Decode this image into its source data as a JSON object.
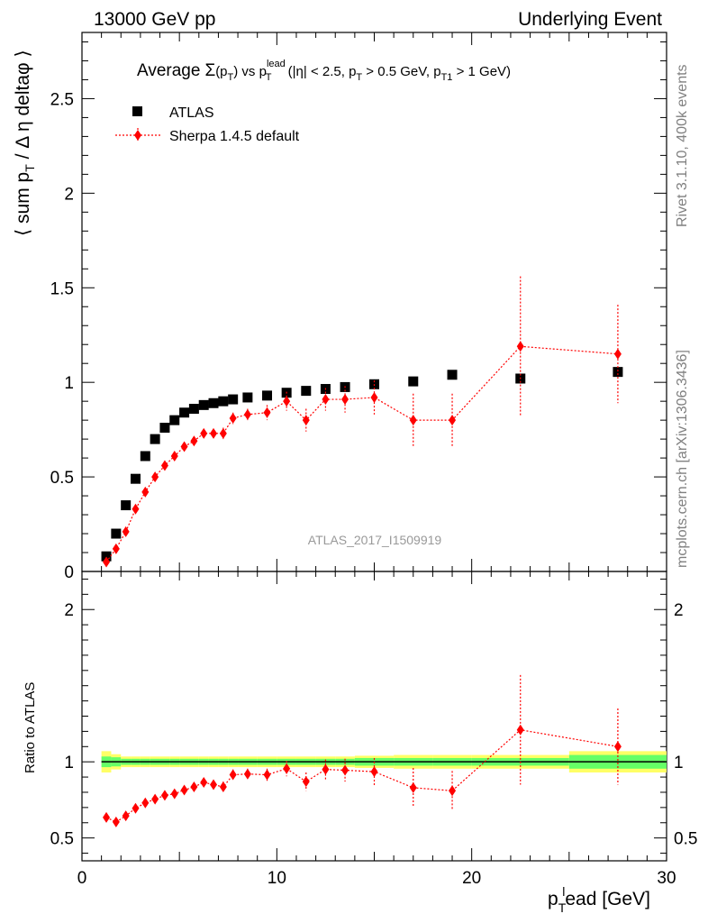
{
  "header": {
    "left": "13000 GeV pp",
    "right": "Underlying Event"
  },
  "title": {
    "lead": "Average",
    "sigma": "Σ",
    "p_open": "(p",
    "sub_T1": "T",
    "p_close": ")",
    "vs": " vs p",
    "sup_lead": "lead",
    "sub_T2": "T",
    "cut1": " (|η| < 2.5, p",
    "sub_T3": "T",
    "cut2": " > 0.5 GeV, p",
    "sub_T4": "T1",
    "cut3": " > 1 GeV)"
  },
  "side_labels": {
    "rivet": "Rivet 3.1.10,  400k events",
    "mcplots": "mcplots.cern.ch [arXiv:1306.3436]"
  },
  "watermark": "ATLAS_2017_I1509919",
  "axes": {
    "ylabel_main": "⟨ sum p",
    "ylabel_main_sub": "T",
    "ylabel_main_rest": " / Δ η deltaφ ⟩",
    "ylabel_ratio": "Ratio to ATLAS",
    "xlabel_p": "p",
    "xlabel_sub": "T",
    "xlabel_sup": "l",
    "xlabel_rest": "ead [GeV]"
  },
  "legend": {
    "data_label": "ATLAS",
    "mc_label": "Sherpa 1.4.5 default"
  },
  "colors": {
    "data": "#000000",
    "mc": "#ff0000",
    "band_inner": "#66ff66",
    "band_outer": "#ffff66",
    "text_side": "#808080"
  },
  "chart_data": [
    {
      "type": "scatter",
      "panel": "main",
      "xlim": [
        0,
        30
      ],
      "ylim": [
        0,
        2.85
      ],
      "yticks": [
        0,
        0.5,
        1,
        1.5,
        2,
        2.5
      ],
      "ytick_labels": [
        "0",
        "0.5",
        "1",
        "1.5",
        "2",
        "2.5"
      ],
      "series": [
        {
          "name": "ATLAS",
          "marker": "square",
          "x": [
            1.25,
            1.75,
            2.25,
            2.75,
            3.25,
            3.75,
            4.25,
            4.75,
            5.25,
            5.75,
            6.25,
            6.75,
            7.25,
            7.75,
            8.5,
            9.5,
            10.5,
            11.5,
            12.5,
            13.5,
            15.0,
            17.0,
            19.0,
            22.5,
            27.5
          ],
          "y": [
            0.08,
            0.2,
            0.35,
            0.49,
            0.61,
            0.7,
            0.76,
            0.8,
            0.84,
            0.86,
            0.88,
            0.89,
            0.9,
            0.91,
            0.92,
            0.93,
            0.945,
            0.955,
            0.965,
            0.975,
            0.99,
            1.005,
            1.04,
            1.02,
            1.055
          ],
          "yerr": [
            0.01,
            0.01,
            0.01,
            0.01,
            0.01,
            0.01,
            0.01,
            0.01,
            0.01,
            0.01,
            0.01,
            0.01,
            0.01,
            0.01,
            0.01,
            0.01,
            0.01,
            0.01,
            0.01,
            0.01,
            0.015,
            0.02,
            0.02,
            0.03,
            0.05
          ]
        },
        {
          "name": "Sherpa 1.4.5 default",
          "marker": "diamond",
          "x": [
            1.25,
            1.75,
            2.25,
            2.75,
            3.25,
            3.75,
            4.25,
            4.75,
            5.25,
            5.75,
            6.25,
            6.75,
            7.25,
            7.75,
            8.5,
            9.5,
            10.5,
            11.5,
            12.5,
            13.5,
            15.0,
            17.0,
            19.0,
            22.5,
            27.5
          ],
          "y": [
            0.05,
            0.12,
            0.21,
            0.33,
            0.42,
            0.5,
            0.56,
            0.61,
            0.66,
            0.69,
            0.73,
            0.73,
            0.73,
            0.81,
            0.83,
            0.84,
            0.9,
            0.8,
            0.91,
            0.91,
            0.92,
            0.8,
            0.8,
            1.19,
            1.15
          ],
          "yerr": [
            0.005,
            0.008,
            0.01,
            0.012,
            0.015,
            0.015,
            0.015,
            0.015,
            0.015,
            0.02,
            0.02,
            0.02,
            0.03,
            0.03,
            0.03,
            0.04,
            0.05,
            0.06,
            0.06,
            0.07,
            0.09,
            0.14,
            0.14,
            0.37,
            0.26
          ]
        }
      ]
    },
    {
      "type": "scatter",
      "panel": "ratio",
      "xlim": [
        0,
        30
      ],
      "ylim": [
        0.35,
        2.25
      ],
      "yticks": [
        0.5,
        1,
        2
      ],
      "ytick_labels": [
        "0.5",
        "1",
        "2"
      ],
      "xticks": [
        0,
        10,
        20,
        30
      ],
      "xtick_labels": [
        "0",
        "10",
        "20",
        "30"
      ],
      "band_edges": [
        1.0,
        1.5,
        2.0,
        2.5,
        3.0,
        3.5,
        4.0,
        4.5,
        5.0,
        5.5,
        6.0,
        6.5,
        7.0,
        7.5,
        8.0,
        9.0,
        10.0,
        11.0,
        12.0,
        13.0,
        14.0,
        16.0,
        18.0,
        20.0,
        25.0,
        30.0
      ],
      "band_inner": [
        0.035,
        0.03,
        0.02,
        0.02,
        0.02,
        0.02,
        0.02,
        0.02,
        0.02,
        0.02,
        0.02,
        0.02,
        0.02,
        0.02,
        0.02,
        0.02,
        0.02,
        0.02,
        0.02,
        0.02,
        0.025,
        0.025,
        0.025,
        0.025,
        0.045
      ],
      "band_outer": [
        0.07,
        0.05,
        0.035,
        0.035,
        0.035,
        0.035,
        0.035,
        0.035,
        0.035,
        0.035,
        0.035,
        0.035,
        0.035,
        0.035,
        0.035,
        0.035,
        0.035,
        0.035,
        0.035,
        0.035,
        0.04,
        0.045,
        0.045,
        0.045,
        0.07
      ],
      "series": [
        {
          "name": "Sherpa 1.4.5 default",
          "marker": "diamond",
          "x": [
            1.25,
            1.75,
            2.25,
            2.75,
            3.25,
            3.75,
            4.25,
            4.75,
            5.25,
            5.75,
            6.25,
            6.75,
            7.25,
            7.75,
            8.5,
            9.5,
            10.5,
            11.5,
            12.5,
            13.5,
            15.0,
            17.0,
            19.0,
            22.5,
            27.5
          ],
          "y": [
            0.635,
            0.605,
            0.645,
            0.695,
            0.73,
            0.755,
            0.78,
            0.79,
            0.815,
            0.835,
            0.865,
            0.85,
            0.835,
            0.915,
            0.92,
            0.915,
            0.955,
            0.87,
            0.95,
            0.945,
            0.935,
            0.83,
            0.81,
            1.21,
            1.1
          ],
          "yerr": [
            0.01,
            0.01,
            0.01,
            0.012,
            0.015,
            0.015,
            0.015,
            0.015,
            0.015,
            0.02,
            0.02,
            0.025,
            0.035,
            0.035,
            0.035,
            0.04,
            0.05,
            0.06,
            0.065,
            0.075,
            0.09,
            0.13,
            0.13,
            0.36,
            0.25
          ]
        }
      ]
    }
  ]
}
